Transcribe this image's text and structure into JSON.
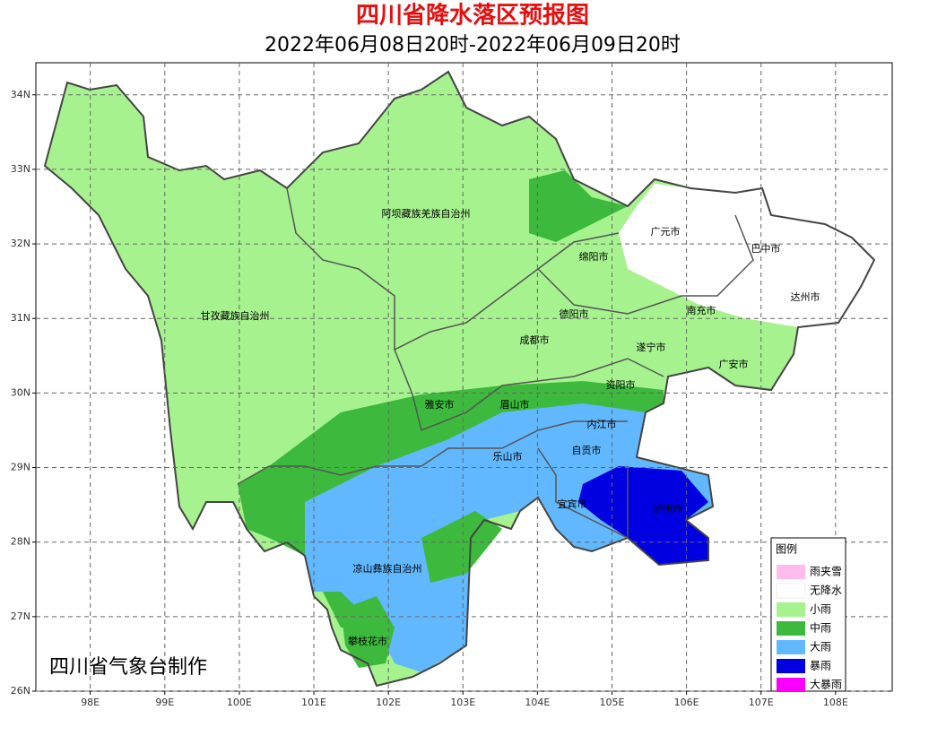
{
  "header": {
    "title": "四川省降水落区预报图",
    "subtitle": "2022年06月08日20时-2022年06月09日20时"
  },
  "map": {
    "lonlim": [
      97.27,
      108.76
    ],
    "latlim": [
      26,
      34.43
    ],
    "lon_ticks": [
      {
        "value": 98,
        "label": "98E"
      },
      {
        "value": 99,
        "label": "99E"
      },
      {
        "value": 100,
        "label": "100E"
      },
      {
        "value": 101,
        "label": "101E"
      },
      {
        "value": 102,
        "label": "102E"
      },
      {
        "value": 103,
        "label": "103E"
      },
      {
        "value": 104,
        "label": "104E"
      },
      {
        "value": 105,
        "label": "105E"
      },
      {
        "value": 106,
        "label": "106E"
      },
      {
        "value": 107,
        "label": "107E"
      },
      {
        "value": 108,
        "label": "108E"
      }
    ],
    "lat_ticks": [
      {
        "value": 26,
        "label": "26N"
      },
      {
        "value": 27,
        "label": "27N"
      },
      {
        "value": 28,
        "label": "28N"
      },
      {
        "value": 29,
        "label": "29N"
      },
      {
        "value": 30,
        "label": "30N"
      },
      {
        "value": 31,
        "label": "31N"
      },
      {
        "value": 32,
        "label": "32N"
      },
      {
        "value": 33,
        "label": "33N"
      },
      {
        "value": 34,
        "label": "34N"
      }
    ],
    "grid": true,
    "cities": [
      "阿坝藏族羌族自治州",
      "甘孜藏族自治州",
      "广元市",
      "巴中市",
      "绵阳市",
      "达州市",
      "德阳市",
      "南充市",
      "成都市",
      "遂宁市",
      "广安市",
      "资阳市",
      "雅安市",
      "眉山市",
      "内江市",
      "乐山市",
      "自贡市",
      "宜宾市",
      "泸州市",
      "凉山彝族自治州",
      "攀枝花市"
    ],
    "credit": "四川省气象台制作"
  },
  "legend": {
    "title": "图例",
    "items": [
      {
        "label": "雨夹雪",
        "color": "#ffbbee"
      },
      {
        "label": "无降水",
        "color": "#ffffff"
      },
      {
        "label": "小雨",
        "color": "#a6f28f"
      },
      {
        "label": "中雨",
        "color": "#3dba3d"
      },
      {
        "label": "大雨",
        "color": "#61b8ff"
      },
      {
        "label": "暴雨",
        "color": "#0000e1"
      },
      {
        "label": "大暴雨",
        "color": "#fa00fa"
      }
    ]
  }
}
